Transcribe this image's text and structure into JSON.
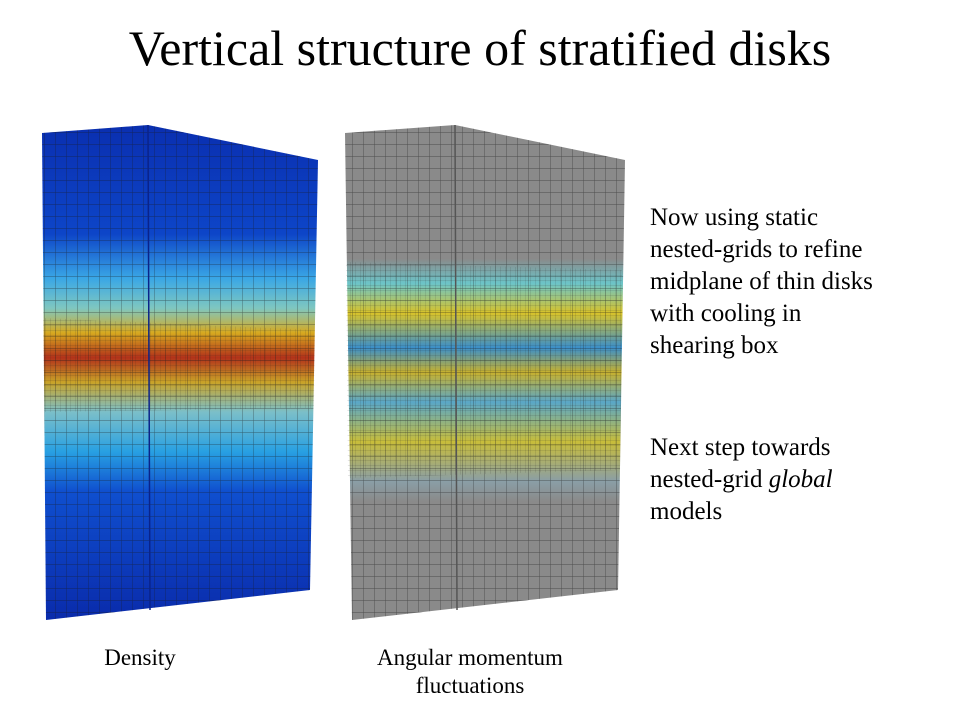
{
  "title": "Vertical structure of stratified disks",
  "figures": [
    {
      "caption_lines": [
        "Density"
      ]
    },
    {
      "caption_lines": [
        "Angular momentum",
        "fluctuations"
      ]
    }
  ],
  "notes": [
    {
      "lines": [
        "Now using static",
        "nested-grids to refine",
        "midplane of thin disks",
        "with cooling in",
        "shearing box"
      ]
    },
    {
      "line1": "Next step towards",
      "line2": "nested-grid",
      "emphasis": "global",
      "line3": "models"
    }
  ]
}
